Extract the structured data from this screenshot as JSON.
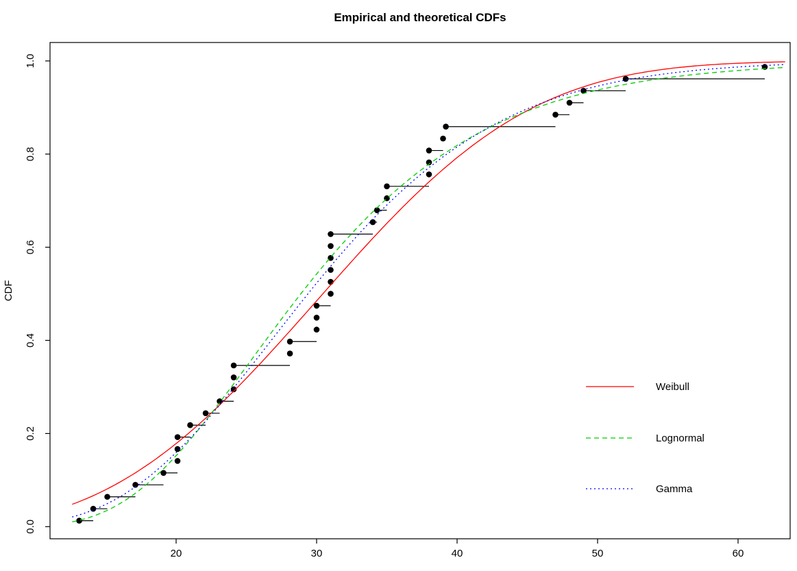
{
  "chart_data": {
    "type": "line",
    "title": "Empirical and theoretical CDFs",
    "xlabel": "",
    "ylabel": "CDF",
    "x_ticks": [
      "20",
      "30",
      "40",
      "50",
      "60"
    ],
    "y_ticks": [
      "0.0",
      "0.2",
      "0.4",
      "0.6",
      "0.8",
      "1.0"
    ],
    "xlim": [
      11.0,
      63.7
    ],
    "ylim": [
      -0.026,
      1.04
    ],
    "grid": "off",
    "legend_position": "right-middle",
    "empirical_cdf": {
      "marker": "filled-circle",
      "color": "#000000",
      "n": 39,
      "point_y_rule": "(i-0.5)/n",
      "observations": [
        13.1,
        14.1,
        15.1,
        17.1,
        19.1,
        20.1,
        20.1,
        20.1,
        21,
        22.1,
        23.1,
        24.1,
        24.1,
        24.1,
        28.1,
        28.1,
        30,
        30,
        30,
        31,
        31,
        31,
        31,
        31,
        31,
        34,
        34.3,
        35,
        35,
        38,
        38,
        38,
        39,
        39.2,
        47,
        48,
        49,
        52,
        61.9
      ]
    },
    "curves": [
      {
        "name": "Weibull",
        "distribution": "weibull",
        "style": "solid",
        "color": "#FF0000",
        "shape": 3.0,
        "scale": 34.4
      },
      {
        "name": "Lognormal",
        "distribution": "lognormal",
        "style": "dashed",
        "color": "#00CD00",
        "meanlog": 3.363,
        "sdlog": 0.358
      },
      {
        "name": "Gamma",
        "distribution": "gamma",
        "style": "dotted",
        "color": "#0000FF",
        "shape": 7.86,
        "rate": 0.2563
      }
    ]
  }
}
